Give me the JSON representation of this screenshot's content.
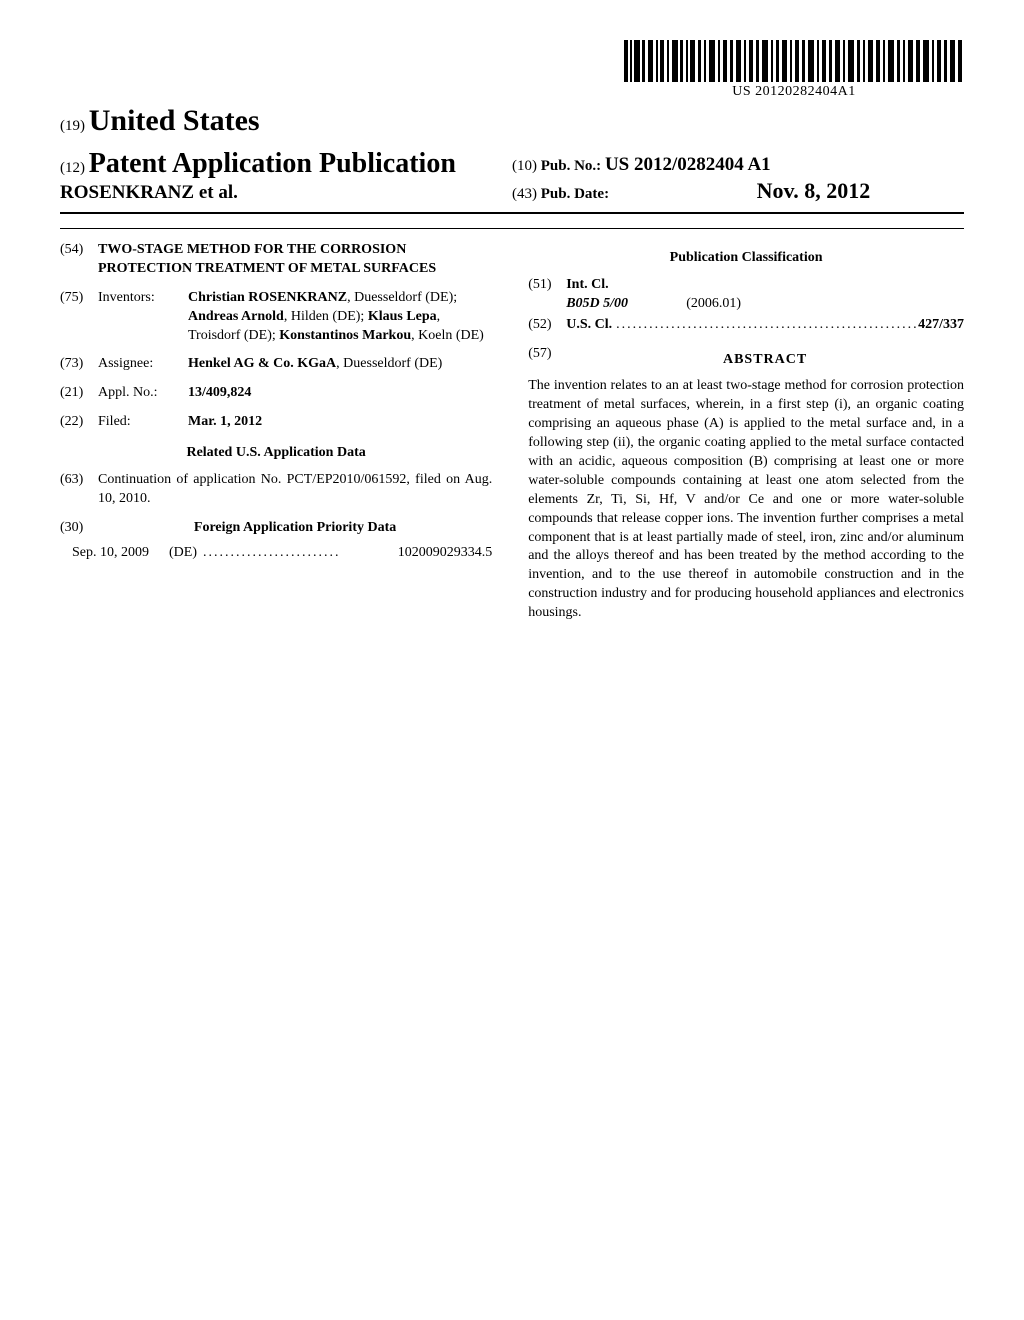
{
  "barcode_text": "US 20120282404A1",
  "country_code": "(19)",
  "country_name": "United States",
  "pub_code": "(12)",
  "pub_title": "Patent Application Publication",
  "authors_line": "ROSENKRANZ et al.",
  "pub_no_code": "(10)",
  "pub_no_label": "Pub. No.:",
  "pub_no_value": "US 2012/0282404 A1",
  "pub_date_code": "(43)",
  "pub_date_label": "Pub. Date:",
  "pub_date_value": "Nov. 8, 2012",
  "fields": {
    "title_num": "(54)",
    "title_text": "TWO-STAGE METHOD FOR THE CORROSION PROTECTION TREATMENT OF METAL SURFACES",
    "inventors_num": "(75)",
    "inventors_label": "Inventors:",
    "inventors_html": "<b>Christian ROSENKRANZ</b>, Duesseldorf (DE); <b>Andreas Arnold</b>, Hilden (DE); <b>Klaus Lepa</b>, Troisdorf (DE); <b>Konstantinos Markou</b>, Koeln (DE)",
    "assignee_num": "(73)",
    "assignee_label": "Assignee:",
    "assignee_html": "<b>Henkel AG & Co. KGaA</b>, Duesseldorf (DE)",
    "applno_num": "(21)",
    "applno_label": "Appl. No.:",
    "applno_value": "13/409,824",
    "filed_num": "(22)",
    "filed_label": "Filed:",
    "filed_value": "Mar. 1, 2012",
    "related_heading": "Related U.S. Application Data",
    "continuation_num": "(63)",
    "continuation_text": "Continuation of application No. PCT/EP2010/061592, filed on Aug. 10, 2010.",
    "foreign_num": "(30)",
    "foreign_heading": "Foreign Application Priority Data",
    "foreign_date": "Sep. 10, 2009",
    "foreign_country": "(DE)",
    "foreign_app_no": "102009029334.5"
  },
  "classification": {
    "heading": "Publication Classification",
    "intcl_num": "(51)",
    "intcl_label": "Int. Cl.",
    "intcl_code": "B05D 5/00",
    "intcl_year": "(2006.01)",
    "uscl_num": "(52)",
    "uscl_label": "U.S. Cl.",
    "uscl_value": "427/337"
  },
  "abstract": {
    "num": "(57)",
    "heading": "ABSTRACT",
    "text": "The invention relates to an at least two-stage method for corrosion protection treatment of metal surfaces, wherein, in a first step (i), an organic coating comprising an aqueous phase (A) is applied to the metal surface and, in a following step (ii), the organic coating applied to the metal surface contacted with an acidic, aqueous composition (B) comprising at least one or more water-soluble compounds containing at least one atom selected from the elements Zr, Ti, Si, Hf, V and/or Ce and one or more water-soluble compounds that release copper ions. The invention further comprises a metal component that is at least partially made of steel, iron, zinc and/or aluminum and the alloys thereof and has been treated by the method according to the invention, and to the use thereof in automobile construction and in the construction industry and for producing household appliances and electronics housings."
  }
}
